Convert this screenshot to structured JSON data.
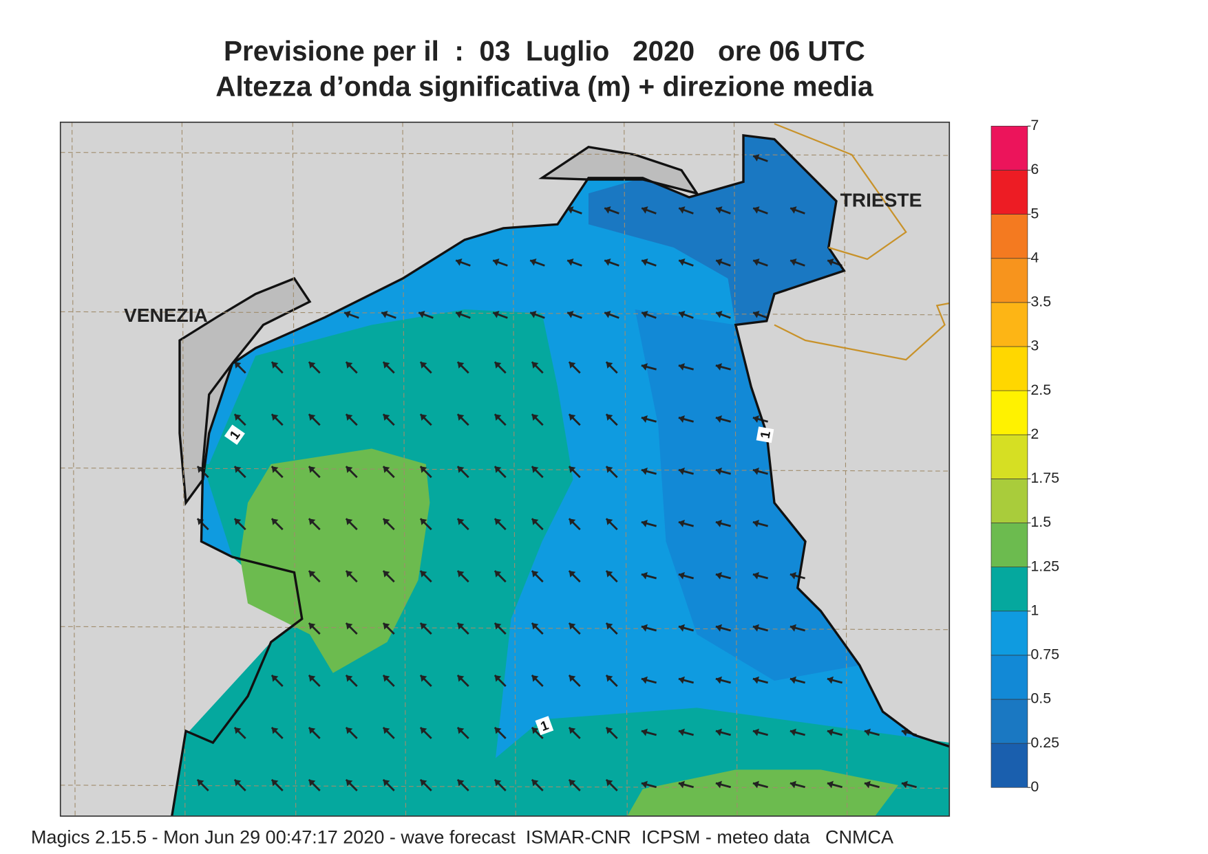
{
  "header": {
    "title": [
      "Previsione per il  :  03  Luglio   2020   ore 06 UTC",
      "Altezza d’onda significativa (m) + direzione media"
    ]
  },
  "map_labels": [
    "VENEZIA",
    "TRIESTE"
  ],
  "contour_labels": [
    "1",
    "1",
    "1"
  ],
  "legend": {
    "levels": [
      0,
      0.25,
      0.5,
      0.75,
      1,
      1.25,
      1.5,
      1.75,
      2,
      2.5,
      3,
      3.5,
      4,
      5,
      6,
      7
    ],
    "colors": [
      "#1a5fae",
      "#1a78c2",
      "#1289d6",
      "#0f9be0",
      "#05a89e",
      "#6cbb4f",
      "#a9cc3b",
      "#d6df23",
      "#fff200",
      "#ffd700",
      "#fdb515",
      "#f7941d",
      "#f47a20",
      "#ed1c24",
      "#ec145b"
    ]
  },
  "footer": "Magics 2.15.5 - Mon Jun 29 00:47:17 2020 - wave forecast  ISMAR-CNR  ICPSM - meteo data   CNMCA"
}
